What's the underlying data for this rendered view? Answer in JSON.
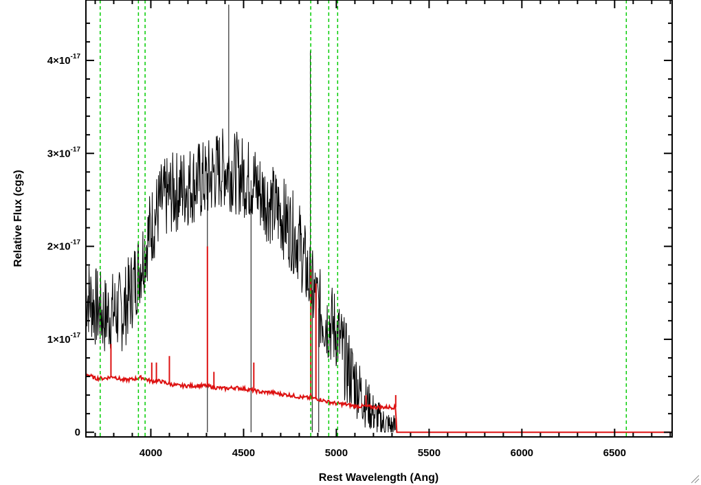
{
  "chart_data": {
    "type": "line",
    "title": "",
    "xlabel": "Rest Wavelength (Ang)",
    "ylabel": "Relative Flux (cgs)",
    "xlim": [
      3650,
      6810
    ],
    "ylim": [
      -5e-19,
      4.65e-17
    ],
    "x_ticks": [
      {
        "value": 4000,
        "label": "4000"
      },
      {
        "value": 4500,
        "label": "4500"
      },
      {
        "value": 5000,
        "label": "5000"
      },
      {
        "value": 5500,
        "label": "5500"
      },
      {
        "value": 6000,
        "label": "6000"
      },
      {
        "value": 6500,
        "label": "6500"
      }
    ],
    "y_ticks": [
      {
        "value": 0,
        "mant": "0",
        "exp": ""
      },
      {
        "value": 1e-17,
        "mant": "1×10",
        "exp": "-17"
      },
      {
        "value": 2e-17,
        "mant": "2×10",
        "exp": "-17"
      },
      {
        "value": 3e-17,
        "mant": "3×10",
        "exp": "-17"
      },
      {
        "value": 4e-17,
        "mant": "4×10",
        "exp": "-17"
      }
    ],
    "grid": false,
    "series": [
      {
        "color": "#000000",
        "x": [
          3650,
          3700,
          3750,
          3800,
          3850,
          3900,
          3950,
          4000,
          4050,
          4100,
          4150,
          4200,
          4250,
          4300,
          4350,
          4400,
          4450,
          4500,
          4550,
          4600,
          4650,
          4700,
          4750,
          4800,
          4850,
          4900,
          4950,
          5000,
          5050,
          5100,
          5150,
          5200,
          5250,
          5300,
          5320
        ],
        "y": [
          1.5e-17,
          1.35e-17,
          1.25e-17,
          1.3e-17,
          1.3e-17,
          1.55e-17,
          1.85e-17,
          2.2e-17,
          2.45e-17,
          2.55e-17,
          2.6e-17,
          2.65e-17,
          2.7e-17,
          2.7e-17,
          2.8e-17,
          2.85e-17,
          2.8e-17,
          2.75e-17,
          2.7e-17,
          2.55e-17,
          2.45e-17,
          2.35e-17,
          2.2e-17,
          2.05e-17,
          1.65e-17,
          1.35e-17,
          1.2e-17,
          1.1e-17,
          7.5e-18,
          5.5e-18,
          3.5e-18,
          2e-18,
          1e-18,
          5e-19,
          5e-19
        ],
        "spikes": [
          {
            "x": 4305,
            "y": 0
          },
          {
            "x": 4420,
            "y": 4.6e-17
          },
          {
            "x": 4540,
            "y": 0
          },
          {
            "x": 4860,
            "y": 4.1e-17
          },
          {
            "x": 4870,
            "y": 0
          },
          {
            "x": 4905,
            "y": 0
          }
        ]
      },
      {
        "color": "#dd1111",
        "x": [
          3650,
          3700,
          3750,
          3800,
          3850,
          3900,
          3950,
          4000,
          4050,
          4100,
          4150,
          4200,
          4250,
          4300,
          4350,
          4400,
          4450,
          4500,
          4550,
          4600,
          4650,
          4700,
          4750,
          4800,
          4850,
          4900,
          4950,
          5000,
          5050,
          5100,
          5150,
          5200,
          5250,
          5300,
          5320,
          5325,
          5400,
          5600,
          5800,
          6000,
          6200,
          6400,
          6600,
          6810
        ],
        "y": [
          6.3e-18,
          5.8e-18,
          5.8e-18,
          6e-18,
          5.6e-18,
          5.7e-18,
          5.9e-18,
          5.5e-18,
          5.5e-18,
          5.2e-18,
          5e-18,
          5e-18,
          5e-18,
          5e-18,
          4.8e-18,
          4.7e-18,
          4.8e-18,
          4.7e-18,
          4.5e-18,
          4.3e-18,
          4.3e-18,
          4.1e-18,
          4e-18,
          3.8e-18,
          3.7e-18,
          3.6e-18,
          3.3e-18,
          3.1e-18,
          3e-18,
          2.8e-18,
          2.8e-18,
          2.7e-18,
          2.7e-18,
          2.7e-18,
          2.7e-18,
          0.0,
          0.0,
          0.0,
          0.0,
          0.0,
          0.0,
          0.0,
          0.0,
          0.0
        ],
        "spikes": [
          {
            "x": 3785,
            "y": 9.5e-18
          },
          {
            "x": 4005,
            "y": 7.5e-18
          },
          {
            "x": 4030,
            "y": 7.5e-18
          },
          {
            "x": 4100,
            "y": 8.2e-18
          },
          {
            "x": 4305,
            "y": 2e-17
          },
          {
            "x": 4340,
            "y": 6.5e-18
          },
          {
            "x": 4555,
            "y": 7.5e-18
          },
          {
            "x": 4862,
            "y": 1.75e-17
          },
          {
            "x": 4890,
            "y": 1.6e-17
          },
          {
            "x": 5160,
            "y": 4e-18
          },
          {
            "x": 5320,
            "y": 4e-18
          }
        ]
      }
    ],
    "vlines": {
      "color": "#00cc00",
      "style": "dashed",
      "x": [
        3727,
        3933,
        3969,
        4862,
        4959,
        5007,
        6563
      ]
    }
  }
}
